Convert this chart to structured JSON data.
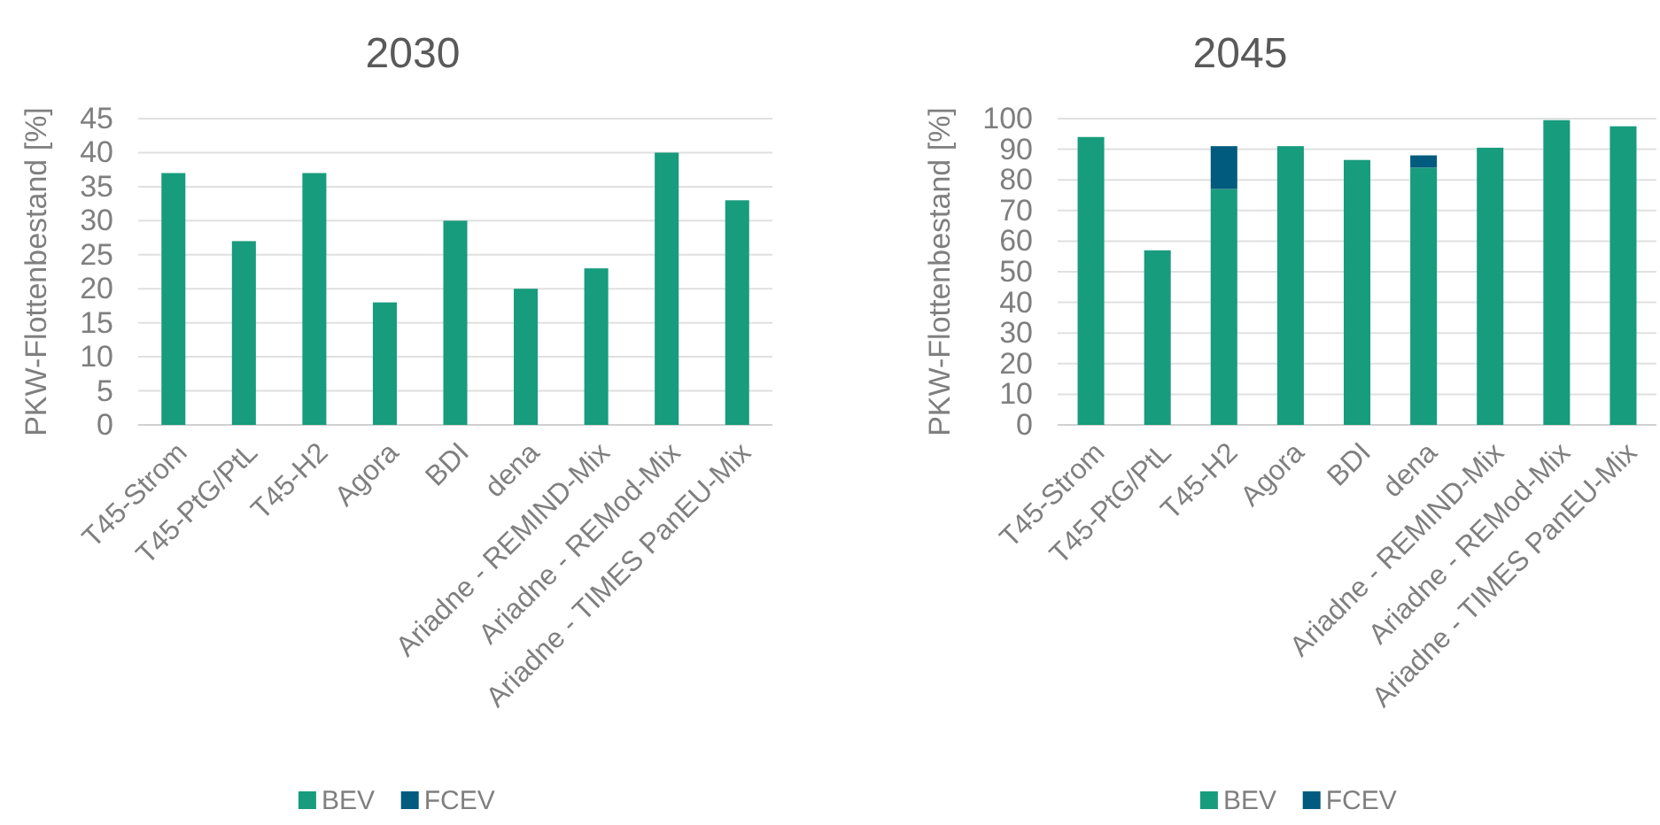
{
  "chart_data": [
    {
      "type": "bar",
      "title": "2030",
      "ylabel": "PKW-Flottenbestand [%]",
      "categories": [
        "T45-Strom",
        "T45-PtG/PtL",
        "T45-H2",
        "Agora",
        "BDI",
        "dena",
        "Ariadne - REMIND-Mix",
        "Ariadne - REMod-Mix",
        "Ariadne - TIMES PanEU-Mix"
      ],
      "stacked": true,
      "series": [
        {
          "name": "BEV",
          "color": "#179c7d",
          "values": [
            37,
            27,
            37,
            18,
            30,
            20,
            23,
            40,
            33
          ]
        },
        {
          "name": "FCEV",
          "color": "#005b7f",
          "values": [
            null,
            null,
            null,
            null,
            null,
            null,
            null,
            null,
            null
          ]
        }
      ],
      "ylim": [
        0,
        45
      ],
      "yticks": [
        0,
        5,
        10,
        15,
        20,
        25,
        30,
        35,
        40,
        45
      ],
      "grid": "y",
      "legend": "bottom"
    },
    {
      "type": "bar",
      "title": "2045",
      "ylabel": "PKW-Flottenbestand [%]",
      "categories": [
        "T45-Strom",
        "T45-PtG/PtL",
        "T45-H2",
        "Agora",
        "BDI",
        "dena",
        "Ariadne - REMIND-Mix",
        "Ariadne - REMod-Mix",
        "Ariadne - TIMES PanEU-Mix"
      ],
      "stacked": true,
      "series": [
        {
          "name": "BEV",
          "color": "#179c7d",
          "values": [
            94,
            57,
            77,
            91,
            86.5,
            84,
            90.5,
            99.5,
            97.5
          ]
        },
        {
          "name": "FCEV",
          "color": "#005b7f",
          "values": [
            null,
            null,
            14,
            null,
            null,
            4,
            null,
            null,
            null
          ]
        }
      ],
      "ylim": [
        0,
        100
      ],
      "yticks": [
        0,
        10,
        20,
        30,
        40,
        50,
        60,
        70,
        80,
        90,
        100
      ],
      "grid": "y",
      "legend": "bottom"
    }
  ]
}
